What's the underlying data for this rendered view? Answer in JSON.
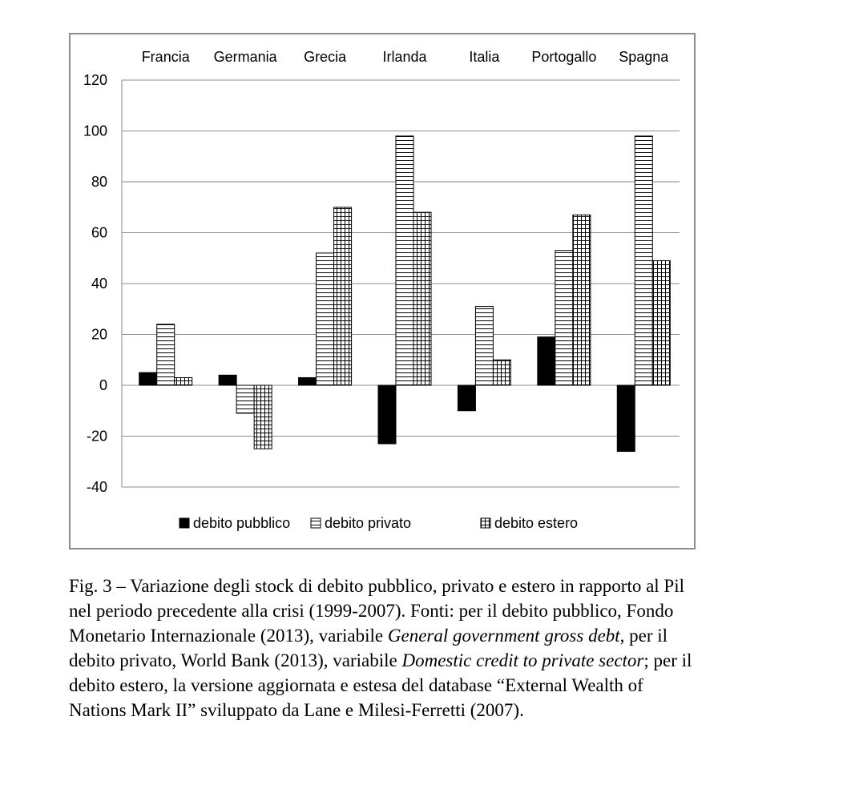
{
  "chart_data": {
    "type": "bar",
    "categories": [
      "Francia",
      "Germania",
      "Grecia",
      "Irlanda",
      "Italia",
      "Portogallo",
      "Spagna"
    ],
    "series": [
      {
        "name": "debito pubblico",
        "values": [
          5,
          4,
          3,
          -23,
          -10,
          19,
          -26
        ]
      },
      {
        "name": "debito privato",
        "values": [
          24,
          -11,
          52,
          98,
          31,
          53,
          98
        ]
      },
      {
        "name": "debito estero",
        "values": [
          3,
          -25,
          70,
          68,
          10,
          67,
          49
        ]
      }
    ],
    "ylim": [
      -40,
      120
    ],
    "yticks": [
      -40,
      -20,
      0,
      20,
      40,
      60,
      80,
      100,
      120
    ],
    "grid": true,
    "category_labels_position": "top",
    "legend_position": "bottom"
  },
  "caption": {
    "line1": "Fig. 3 – Variazione degli stock di debito pubblico, privato e estero in rapporto al Pil",
    "line2": "nel periodo precedente alla crisi (1999-2007). Fonti: per il debito pubblico, Fondo",
    "line3a": "Monetario Internazionale (2013), variabile ",
    "line3b": "General government gross debt",
    "line3c": ", per il",
    "line4a": "debito privato, World Bank (2013), variabile ",
    "line4b": "Domestic credit to private sector",
    "line4c": "; per il",
    "line5": "debito estero, la versione aggiornata e estesa del database “External Wealth of",
    "line6": "Nations Mark II” sviluppato da Lane e Milesi-Ferretti (2007)."
  }
}
